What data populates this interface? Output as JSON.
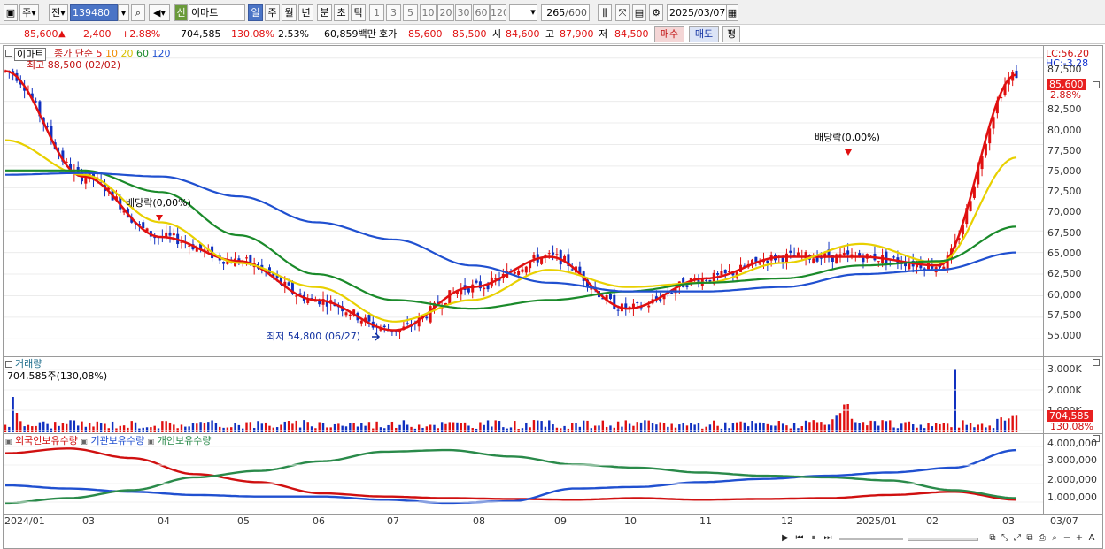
{
  "toolbar": {
    "period_label": "주",
    "prev_label": "전",
    "code_value": "139480",
    "new_badge": "신",
    "stock_name": "이마트",
    "periods": [
      "일",
      "주",
      "월",
      "년",
      "분",
      "초",
      "틱"
    ],
    "period_selected": "일",
    "minute_steps": [
      "1",
      "3",
      "5",
      "10",
      "20",
      "30",
      "60",
      "120"
    ],
    "count_value": "265",
    "count_total": "/600",
    "date_value": "2025/03/07"
  },
  "quote": {
    "price": "85,600",
    "change": "2,400",
    "change_pct": "+2.88%",
    "volume": "704,585",
    "volume_ratio": "130.08%",
    "turnover": "2.53%",
    "amount": "60,859백만",
    "hoga_label": "호가",
    "ask": "85,600",
    "bid": "85,500",
    "open_label": "시",
    "open": "84,600",
    "high_label": "고",
    "high": "87,900",
    "low_label": "저",
    "low": "84,500",
    "buy_label": "매수",
    "sell_label": "매도",
    "eval_label": "평"
  },
  "price_pane": {
    "title": "이마트",
    "ma_label": "종가 단순",
    "ma_periods": [
      "5",
      "10",
      "20",
      "60",
      "120"
    ],
    "ma_colors": [
      "#e01010",
      "#f08c00",
      "#e8d000",
      "#1a8a2a",
      "#2050d0"
    ],
    "high_note": "최고 88,500 (02/02)",
    "low_note": "최저 54,800 (06/27)",
    "dividend_note_1": "배당락(0,00%)",
    "dividend_note_2": "배당락(0,00%)",
    "lc": "LC:56,20",
    "hc": "HC:-3,28",
    "current_box": "85,600",
    "current_pct": "2.88%",
    "y_ticks": [
      "87,500",
      "82,500",
      "80,000",
      "77,500",
      "75,000",
      "72,500",
      "70,000",
      "67,500",
      "65,000",
      "62,500",
      "60,000",
      "57,500",
      "55,000"
    ]
  },
  "volume_pane": {
    "title": "거래량",
    "summary": "704,585주(130,08%)",
    "y_ticks": [
      "3,000K",
      "2,000K",
      "1,000K"
    ],
    "current_box": "704,585",
    "current_pct": "130,08%"
  },
  "holdings_pane": {
    "legend": [
      "외국인보유수량",
      "기관보유수량",
      "개인보유수량"
    ],
    "legend_colors": [
      "#d01010",
      "#2050d0",
      "#2a8a4a"
    ],
    "y_ticks": [
      "4,000,000",
      "3,000,000",
      "2,000,000",
      "1,000,000"
    ]
  },
  "x_axis": {
    "ticks": [
      "2024/01",
      "03",
      "04",
      "05",
      "06",
      "07",
      "08",
      "09",
      "10",
      "11",
      "12",
      "2025/01",
      "02",
      "03"
    ],
    "last_date": "03/07"
  },
  "chart_data": {
    "type": "line",
    "title": "",
    "xlabel": "",
    "ylabel": "",
    "x": [
      "2024/01",
      "03",
      "04",
      "05",
      "06",
      "07",
      "08",
      "09",
      "10",
      "11",
      "12",
      "2025/01",
      "02",
      "03"
    ],
    "ylim": [
      53500,
      88500
    ],
    "series": [
      {
        "name": "5",
        "values": [
          86000,
          73800,
          66800,
          64000,
          59500,
          56000,
          61000,
          64500,
          58500,
          62000,
          64500,
          64500,
          63500,
          85600
        ]
      },
      {
        "name": "20",
        "values": [
          78000,
          74000,
          68500,
          63800,
          61000,
          57000,
          59500,
          63000,
          61000,
          61500,
          63800,
          66000,
          63800,
          76000
        ]
      },
      {
        "name": "60",
        "values": [
          74500,
          74500,
          72000,
          67000,
          62500,
          59500,
          58500,
          59500,
          60500,
          61500,
          62000,
          63500,
          64000,
          68000
        ]
      },
      {
        "name": "120",
        "values": [
          74000,
          74200,
          73800,
          71500,
          68500,
          66500,
          63500,
          61500,
          60500,
          60500,
          61000,
          62500,
          63000,
          65000
        ]
      }
    ]
  }
}
